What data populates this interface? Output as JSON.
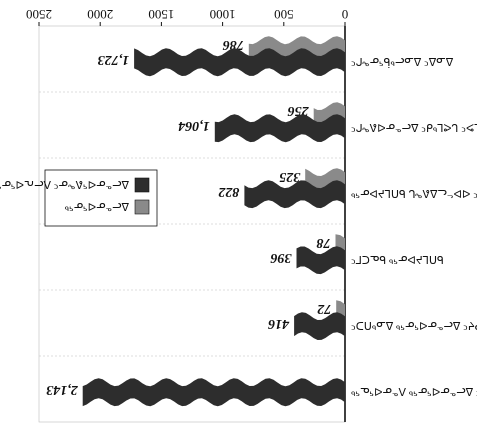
{
  "chart_data": {
    "type": "bar",
    "orientation": "horizontal",
    "rotated_180": true,
    "x_ticks": [
      "0",
      "500",
      "1000",
      "1500",
      "2000",
      "2500"
    ],
    "xlim": [
      0,
      2500
    ],
    "grid": true,
    "legend_position": "left",
    "categories": [
      "ᐱᕐᕿᔪᑦ ᐃᓕᓐᓂᐊᕐᓂᖅ ᐱᓐᓂᐊᕐᓇᖅ",
      "ᐱᕐᕿᔪᑦ ᐃᓕᓐᓂᐊᕐᓂᖅ ᐃᓄᒃᑎᑐᑦ",
      "ᑲᑎᒪᔨᐅᓂᖅ ᑲᓇᑕᒥᑦ",
      "ᐃᓄᐃᑦ ᐊᐅᓪᓚᐃᕕᖓ ᑲᑎᒪᔨᐅᓂᖅ",
      "ᓄᓇᕗᑦ ᒐᕙᒪᒃᑯᑦ ᐃᓕᓐᓂᐊᕕᖏᑦ",
      "ᐃᓄᐃᑦ ᐃᓄᓕᒃᑳᕐᓂᖏᑦ"
    ],
    "series": [
      {
        "name": "ᐃᓕᓐᓂᐊᕐᕕᖕᓂᑦ ᐱᓕᕆᐊᕐᓂᖅ",
        "color": "#2d2d2d",
        "values": [
          2143,
          416,
          396,
          822,
          1064,
          1723
        ]
      },
      {
        "name": "ᐃᓕᓐᓂᐊᕐᓂᖅ",
        "color": "#8a8a8a",
        "values": [
          null,
          72,
          78,
          325,
          256,
          786
        ]
      }
    ],
    "value_labels": {
      "dark": [
        "2,143",
        "416",
        "396",
        "822",
        "1,064",
        "1,723"
      ],
      "light": [
        "",
        "72",
        "78",
        "325",
        "256",
        "786"
      ]
    }
  }
}
